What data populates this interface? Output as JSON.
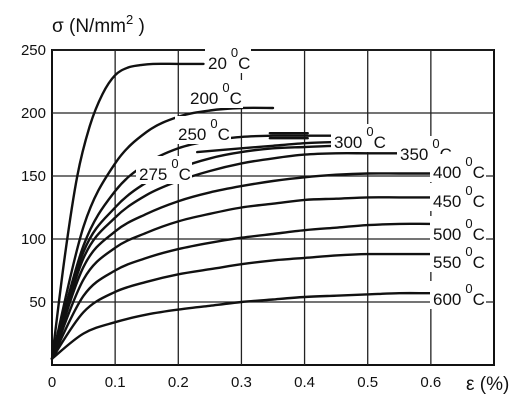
{
  "chart_data": {
    "type": "line",
    "ylabel": "σ (N/mm",
    "ylabel_sup": "2",
    "ylabel_close": " )",
    "xlabel": "ε (%)",
    "xlim": [
      0,
      0.7
    ],
    "ylim": [
      0,
      250
    ],
    "x_ticks": [
      0,
      0.1,
      0.2,
      0.3,
      0.4,
      0.5,
      0.6
    ],
    "x_tick_labels": [
      "0",
      "0.1",
      "0.2",
      "0.3",
      "0.4",
      "0.5",
      "0.6"
    ],
    "y_ticks": [
      50,
      100,
      150,
      200,
      250
    ],
    "y_tick_labels": [
      "50",
      "100",
      "150",
      "200",
      "250"
    ],
    "grid": true,
    "degree_symbol": "0",
    "unit": "C",
    "series": [
      {
        "name": "20",
        "x": [
          0,
          0.02,
          0.04,
          0.06,
          0.08,
          0.1,
          0.12,
          0.14,
          0.16,
          0.2,
          0.24
        ],
        "y": [
          5,
          85,
          150,
          190,
          215,
          230,
          236,
          238,
          239,
          239,
          239
        ]
      },
      {
        "name": "200",
        "x": [
          0,
          0.05,
          0.1,
          0.15,
          0.2,
          0.25,
          0.3,
          0.35
        ],
        "y": [
          5,
          110,
          160,
          185,
          197,
          202,
          204,
          204
        ]
      },
      {
        "name": "250",
        "x": [
          0,
          0.05,
          0.1,
          0.15,
          0.2,
          0.25,
          0.3,
          0.35,
          0.4,
          0.45
        ],
        "y": [
          5,
          95,
          138,
          160,
          172,
          178,
          181,
          182,
          182,
          182
        ]
      },
      {
        "name": "300",
        "x": [
          0,
          0.05,
          0.1,
          0.15,
          0.2,
          0.25,
          0.3,
          0.35,
          0.4,
          0.45,
          0.5
        ],
        "y": [
          5,
          90,
          125,
          145,
          156,
          164,
          169,
          172,
          173,
          174,
          174
        ]
      },
      {
        "name": "350",
        "x": [
          0,
          0.05,
          0.1,
          0.15,
          0.2,
          0.25,
          0.3,
          0.35,
          0.4,
          0.45,
          0.5,
          0.55
        ],
        "y": [
          5,
          85,
          117,
          135,
          146,
          154,
          160,
          164,
          167,
          168,
          168,
          168
        ]
      },
      {
        "name": "275",
        "x": [
          0.23,
          0.3,
          0.35,
          0.4,
          0.45
        ],
        "y": [
          169,
          172,
          174,
          176,
          177
        ]
      },
      {
        "name": "400",
        "x": [
          0,
          0.05,
          0.1,
          0.15,
          0.2,
          0.25,
          0.3,
          0.35,
          0.4,
          0.45,
          0.5,
          0.55,
          0.6,
          0.66
        ],
        "y": [
          5,
          78,
          106,
          120,
          130,
          137,
          142,
          146,
          149,
          151,
          152,
          152,
          152,
          152
        ]
      },
      {
        "name": "450",
        "x": [
          0,
          0.05,
          0.1,
          0.15,
          0.2,
          0.25,
          0.3,
          0.35,
          0.4,
          0.45,
          0.5,
          0.55,
          0.6,
          0.66
        ],
        "y": [
          5,
          68,
          93,
          105,
          114,
          120,
          125,
          128,
          131,
          132,
          133,
          133,
          133,
          133
        ]
      },
      {
        "name": "500",
        "x": [
          0,
          0.05,
          0.1,
          0.15,
          0.2,
          0.25,
          0.3,
          0.35,
          0.4,
          0.45,
          0.5,
          0.55,
          0.6,
          0.66
        ],
        "y": [
          5,
          55,
          75,
          85,
          92,
          97,
          101,
          104,
          107,
          109,
          111,
          112,
          112,
          112
        ]
      },
      {
        "name": "550",
        "x": [
          0,
          0.05,
          0.1,
          0.15,
          0.2,
          0.25,
          0.3,
          0.35,
          0.4,
          0.45,
          0.5,
          0.55,
          0.6,
          0.66
        ],
        "y": [
          5,
          42,
          58,
          66,
          72,
          76,
          80,
          83,
          85,
          87,
          88,
          88,
          88,
          88
        ]
      },
      {
        "name": "600",
        "x": [
          0,
          0.05,
          0.1,
          0.15,
          0.2,
          0.25,
          0.3,
          0.35,
          0.4,
          0.45,
          0.5,
          0.55,
          0.6,
          0.66
        ],
        "y": [
          5,
          25,
          34,
          40,
          44,
          47,
          50,
          52,
          54,
          55,
          56,
          57,
          57,
          57
        ]
      }
    ]
  }
}
